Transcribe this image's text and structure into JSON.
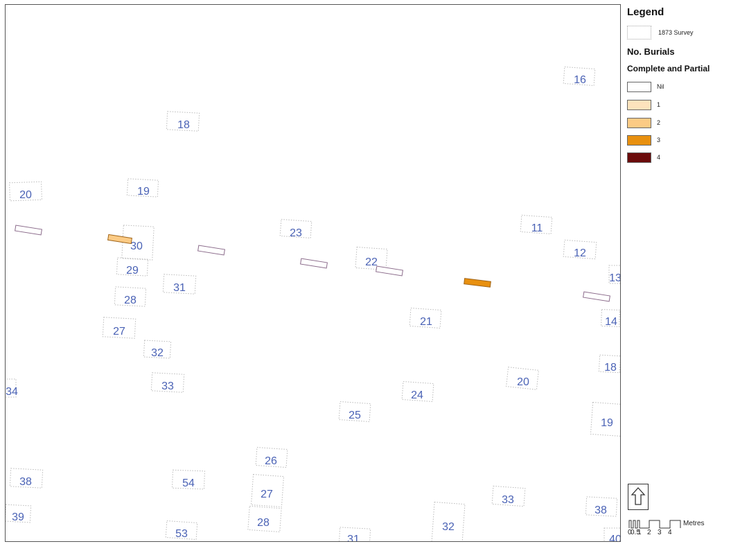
{
  "legend": {
    "title": "Legend",
    "survey_label": "1873 Survey",
    "burials_heading": "No. Burials",
    "burials_subheading": "Complete and Partial",
    "classes": [
      {
        "label": "Nil",
        "color": "#ffffff"
      },
      {
        "label": "1",
        "color": "#fde3bd"
      },
      {
        "label": "2",
        "color": "#fccb85"
      },
      {
        "label": "3",
        "color": "#e8900f"
      },
      {
        "label": "4",
        "color": "#6b0b0b"
      }
    ]
  },
  "scale_bar": {
    "unit": "Metres",
    "tick_labels": [
      "0",
      "0.5",
      "1",
      "2",
      "3",
      "4"
    ]
  },
  "map": {
    "plot_labels": [
      "16",
      "18",
      "20",
      "19",
      "23",
      "11",
      "30",
      "12",
      "29",
      "22",
      "31",
      "13",
      "28",
      "21",
      "14",
      "27",
      "32",
      "18",
      "20",
      "34",
      "33",
      "24",
      "25",
      "19",
      "26",
      "38",
      "54",
      "27",
      "33",
      "39",
      "38",
      "28",
      "32",
      "53",
      "31",
      "40"
    ],
    "burial_classes": [
      "Nil",
      "2",
      "Nil",
      "Nil",
      "Nil",
      "3",
      "Nil"
    ]
  }
}
